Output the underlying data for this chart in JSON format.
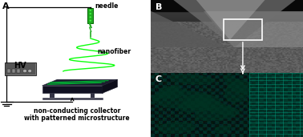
{
  "bg_color": "#ffffff",
  "panel_A": {
    "label": "A",
    "needle_color": "#22cc22",
    "fiber_color": "#00ff00",
    "collector_top": "#1a1a2a",
    "collector_side": "#0d0d18",
    "collector_right": "#111120",
    "line_color": "#00bb33",
    "hv_box_color": "#888888",
    "hv_text": "HV",
    "needle_label": "needle",
    "nanofiber_label": "nanofiber",
    "collector_label1": "non-conducting collector",
    "collector_label2": "with patterned microstructure",
    "font_size": 5.5,
    "label_fontsize": 8,
    "wire_color": "#000000"
  },
  "panel_B": {
    "label": "B",
    "bg": "#111111",
    "label_color": "#ffffff",
    "label_fontsize": 8
  },
  "panel_C": {
    "label": "C",
    "label_color": "#ffffff",
    "label_fontsize": 8
  },
  "figsize": [
    3.78,
    1.71
  ],
  "dpi": 100
}
